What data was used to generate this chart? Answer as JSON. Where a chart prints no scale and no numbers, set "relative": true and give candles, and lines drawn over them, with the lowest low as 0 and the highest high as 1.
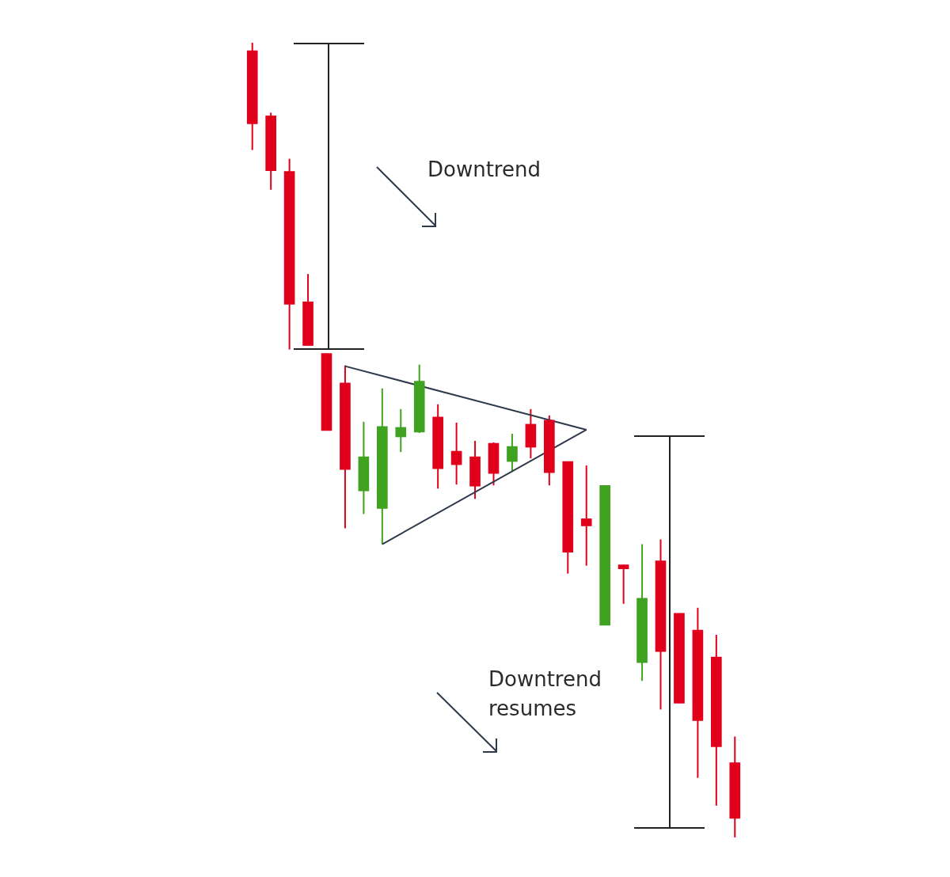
{
  "chart_data": {
    "type": "candlestick",
    "relative": true,
    "categories": [
      null,
      null,
      null,
      null,
      null,
      null,
      null,
      null,
      null,
      null,
      null,
      null,
      null,
      null,
      null,
      null,
      null,
      null,
      null,
      null,
      null,
      null,
      null,
      null,
      null,
      null,
      null
    ],
    "ohlc": [
      [
        0.99,
        1.0,
        0.865,
        0.898
      ],
      [
        0.908,
        0.912,
        0.815,
        0.839
      ],
      [
        0.838,
        0.854,
        0.614,
        0.671
      ],
      [
        0.674,
        0.709,
        0.619,
        0.619
      ],
      [
        0.609,
        0.609,
        0.512,
        0.512
      ],
      [
        0.572,
        0.594,
        0.389,
        0.463
      ],
      [
        0.436,
        0.523,
        0.407,
        0.479
      ],
      [
        0.414,
        0.565,
        0.369,
        0.517
      ],
      [
        0.504,
        0.539,
        0.485,
        0.516
      ],
      [
        0.51,
        0.595,
        0.509,
        0.574
      ],
      [
        0.529,
        0.545,
        0.439,
        0.464
      ],
      [
        0.486,
        0.522,
        0.444,
        0.469
      ],
      [
        0.479,
        0.499,
        0.426,
        0.442
      ],
      [
        0.496,
        0.497,
        0.443,
        0.458
      ],
      [
        0.473,
        0.508,
        0.46,
        0.492
      ],
      [
        0.52,
        0.539,
        0.477,
        0.491
      ],
      [
        0.525,
        0.531,
        0.443,
        0.459
      ],
      [
        0.473,
        0.473,
        0.332,
        0.359
      ],
      [
        0.401,
        0.468,
        0.342,
        0.392
      ],
      [
        0.267,
        0.443,
        0.267,
        0.443
      ],
      [
        0.343,
        0.343,
        0.294,
        0.338
      ],
      [
        0.22,
        0.369,
        0.197,
        0.301
      ],
      [
        0.348,
        0.375,
        0.161,
        0.234
      ],
      [
        0.282,
        0.282,
        0.169,
        0.169
      ],
      [
        0.261,
        0.289,
        0.075,
        0.147
      ],
      [
        0.227,
        0.255,
        0.04,
        0.114
      ],
      [
        0.094,
        0.127,
        0.0,
        0.024
      ]
    ],
    "colors": [
      "#e0001b",
      "#e0001b",
      "#e0001b",
      "#e0001b",
      "#e0001b",
      "#e0001b",
      "#3fa321",
      "#3fa321",
      "#3fa321",
      "#3fa321",
      "#e0001b",
      "#e0001b",
      "#e0001b",
      "#e0001b",
      "#3fa321",
      "#e0001b",
      "#e0001b",
      "#e0001b",
      "#e0001b",
      "#3fa321",
      "#e0001b",
      "#3fa321",
      "#e0001b",
      "#e0001b",
      "#e0001b",
      "#e0001b",
      "#e0001b"
    ],
    "series": [
      {
        "type": "line",
        "color": "#2e3a4b",
        "values": [
          null,
          null,
          null,
          null,
          null,
          0.593,
          null,
          null,
          null,
          null,
          null,
          null,
          null,
          null,
          null,
          null,
          null,
          null,
          0.513,
          null,
          null,
          null,
          null,
          null,
          null,
          null,
          null
        ]
      },
      {
        "type": "line",
        "color": "#2e3a4b",
        "values": [
          null,
          null,
          null,
          null,
          null,
          null,
          null,
          0.369,
          null,
          null,
          null,
          null,
          null,
          null,
          null,
          null,
          null,
          null,
          0.513,
          null,
          null,
          null,
          null,
          null,
          null,
          null,
          null
        ]
      }
    ],
    "annotations": [
      "Downtrend",
      "Downtrend resumes"
    ]
  }
}
